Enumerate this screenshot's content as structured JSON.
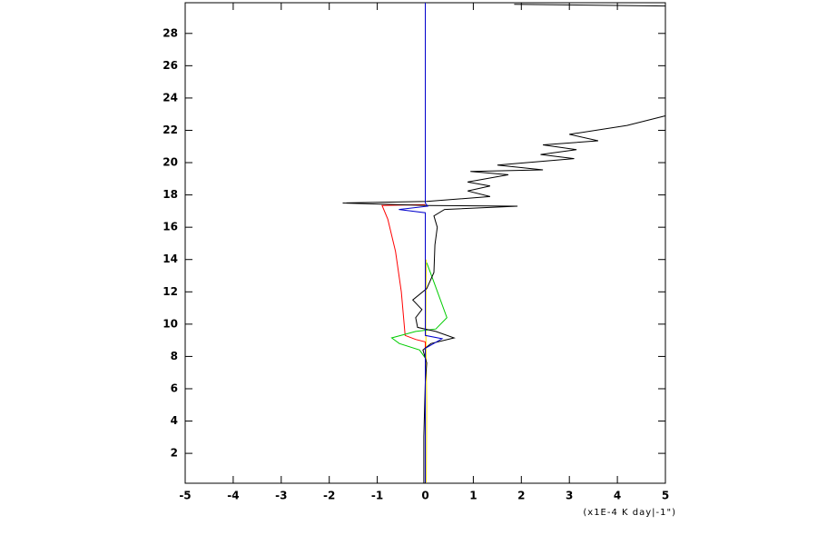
{
  "chart_data": {
    "type": "line",
    "x_label": "(x1E-4 K day|-1\")",
    "xlim": [
      -5,
      5
    ],
    "xticks": [
      -5,
      -4,
      -3,
      -2,
      -1,
      0,
      1,
      2,
      3,
      4,
      5
    ],
    "ylim": [
      0.15,
      29.9
    ],
    "yticks": [
      2,
      4,
      6,
      8,
      10,
      12,
      14,
      16,
      18,
      20,
      22,
      24,
      26,
      28
    ],
    "series": [
      {
        "color": "#ffd700",
        "x": [
          0.02,
          0.03,
          0.01,
          0.02
        ],
        "y": [
          0.2,
          5,
          10,
          14
        ]
      },
      {
        "color": "#ff0000",
        "x": [
          0,
          -0.9,
          -0.78,
          -0.62,
          -0.5,
          -0.42,
          -0.2,
          0,
          0
        ],
        "y": [
          17.4,
          17.35,
          16.5,
          14.5,
          12,
          9.3,
          9.05,
          8.9,
          0.2
        ]
      },
      {
        "color": "#00cc00",
        "x": [
          0.03,
          0.18,
          0.45,
          0.22,
          -0.2,
          -0.7,
          -0.54,
          -0.12,
          0,
          0
        ],
        "y": [
          13.8,
          12.6,
          10.4,
          9.7,
          9.55,
          9.15,
          8.8,
          8.4,
          7.9,
          0.2
        ]
      },
      {
        "color": "#000000",
        "x": [
          -0.03,
          -0.03,
          0,
          0.03,
          -0.05,
          0.12,
          0.6,
          0.22,
          -0.16,
          -0.2,
          -0.07,
          -0.26,
          0.03,
          0.18,
          0.2,
          0.25,
          0.18,
          0.4,
          1.92,
          0.03,
          -1.72,
          0.03,
          1.35,
          0.88,
          1.35,
          0.88,
          1.73,
          0.94,
          2.45,
          1.5,
          3.1,
          2.4,
          3.15,
          2.45,
          3.6,
          3.0,
          4.2,
          5,
          null,
          1.85,
          5
        ],
        "y": [
          0.15,
          3.05,
          6.4,
          7.6,
          8.4,
          8.8,
          9.15,
          9.55,
          9.8,
          10.4,
          10.9,
          11.5,
          12.2,
          13.2,
          14.9,
          16.0,
          16.7,
          17.1,
          17.3,
          17.35,
          17.5,
          17.6,
          17.9,
          18.25,
          18.55,
          18.8,
          19.25,
          19.45,
          19.55,
          19.85,
          20.25,
          20.5,
          20.8,
          21.1,
          21.35,
          21.75,
          22.3,
          22.9,
          null,
          29.8,
          29.7
        ]
      },
      {
        "color": "#0000cc",
        "x": [
          0,
          0,
          0.35,
          0,
          0,
          -0.55,
          0.05,
          0,
          0
        ],
        "y": [
          0.2,
          8.5,
          9.1,
          9.3,
          16.9,
          17.1,
          17.3,
          17.5,
          29.9
        ]
      }
    ]
  }
}
